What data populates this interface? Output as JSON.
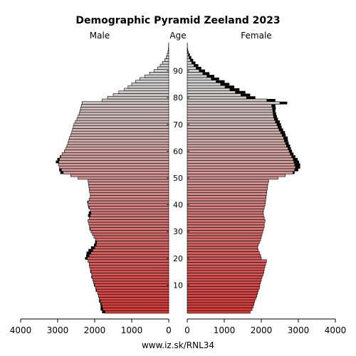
{
  "chart_data": {
    "type": "bar",
    "title": "Demographic Pyramid Zeeland 2023",
    "left_label": "Male",
    "center_label": "Age",
    "right_label": "Female",
    "source": "www.iz.sk/RNL34",
    "age_ticks": [
      10,
      20,
      30,
      40,
      50,
      60,
      70,
      80,
      90
    ],
    "x_ticks_left": [
      "4000",
      "3000",
      "2000",
      "1000",
      "0"
    ],
    "x_ticks_right": [
      "0",
      "1000",
      "2000",
      "3000",
      "4000"
    ],
    "xlim": [
      0,
      4000
    ],
    "age_range": [
      0,
      100
    ],
    "ages": [
      0,
      1,
      2,
      3,
      4,
      5,
      6,
      7,
      8,
      9,
      10,
      11,
      12,
      13,
      14,
      15,
      16,
      17,
      18,
      19,
      20,
      21,
      22,
      23,
      24,
      25,
      26,
      27,
      28,
      29,
      30,
      31,
      32,
      33,
      34,
      35,
      36,
      37,
      38,
      39,
      40,
      41,
      42,
      43,
      44,
      45,
      46,
      47,
      48,
      49,
      50,
      51,
      52,
      53,
      54,
      55,
      56,
      57,
      58,
      59,
      60,
      61,
      62,
      63,
      64,
      65,
      66,
      67,
      68,
      69,
      70,
      71,
      72,
      73,
      74,
      75,
      76,
      77,
      78,
      79,
      80,
      81,
      82,
      83,
      84,
      85,
      86,
      87,
      88,
      89,
      90,
      91,
      92,
      93,
      94,
      95,
      96,
      97,
      98,
      99,
      100
    ],
    "series": [
      {
        "name": "Male",
        "values": [
          1720,
          1780,
          1800,
          1820,
          1850,
          1880,
          1900,
          1920,
          1950,
          1980,
          2000,
          2030,
          2050,
          2070,
          2080,
          2100,
          2120,
          2140,
          2150,
          2180,
          2200,
          2150,
          2100,
          2050,
          2000,
          1960,
          1950,
          1980,
          2020,
          2060,
          2100,
          2120,
          2140,
          2160,
          2180,
          2150,
          2120,
          2100,
          2120,
          2150,
          2180,
          2180,
          2150,
          2120,
          2120,
          2140,
          2150,
          2160,
          2170,
          2180,
          2450,
          2650,
          2850,
          2900,
          2950,
          2980,
          2970,
          2950,
          2920,
          2880,
          2820,
          2780,
          2750,
          2720,
          2700,
          2680,
          2650,
          2620,
          2600,
          2580,
          2560,
          2520,
          2480,
          2450,
          2420,
          2400,
          2380,
          2360,
          2340,
          1800,
          1650,
          1500,
          1350,
          1200,
          1100,
          1000,
          900,
          780,
          650,
          520,
          400,
          300,
          230,
          170,
          110,
          70,
          40,
          20,
          10,
          5,
          2
        ],
        "excess": [
          80,
          60,
          40,
          30,
          30,
          0,
          0,
          0,
          20,
          0,
          20,
          0,
          0,
          20,
          0,
          20,
          0,
          0,
          0,
          0,
          60,
          80,
          120,
          120,
          100,
          60,
          40,
          0,
          0,
          0,
          0,
          20,
          0,
          0,
          0,
          0,
          60,
          60,
          0,
          20,
          0,
          20,
          0,
          0,
          0,
          0,
          0,
          0,
          0,
          0,
          0,
          0,
          80,
          60,
          0,
          0,
          80,
          60,
          20,
          0,
          0,
          0,
          0,
          0,
          0,
          0,
          0,
          0,
          0,
          0,
          0,
          0,
          0,
          0,
          0,
          0,
          0,
          0,
          0,
          0,
          0,
          0,
          0,
          0,
          0,
          0,
          0,
          0,
          0,
          0,
          0,
          0,
          0,
          0,
          0,
          0,
          0,
          0,
          0,
          0,
          0
        ]
      },
      {
        "name": "Female",
        "values": [
          1700,
          1750,
          1780,
          1800,
          1820,
          1850,
          1880,
          1900,
          1920,
          1950,
          1960,
          1980,
          2000,
          2020,
          2050,
          2070,
          2080,
          2100,
          2120,
          2140,
          2000,
          1980,
          1950,
          1920,
          1900,
          1920,
          1950,
          1980,
          2000,
          2020,
          2040,
          2060,
          2080,
          2080,
          2100,
          2080,
          2060,
          2050,
          2060,
          2080,
          2100,
          2110,
          2120,
          2130,
          2140,
          2150,
          2160,
          2170,
          2180,
          2200,
          2450,
          2650,
          2850,
          2900,
          2920,
          2900,
          2880,
          2860,
          2820,
          2780,
          2750,
          2720,
          2680,
          2650,
          2620,
          2600,
          2560,
          2520,
          2480,
          2450,
          2420,
          2380,
          2350,
          2330,
          2320,
          2310,
          2300,
          2280,
          2500,
          2150,
          1600,
          1450,
          1300,
          1150,
          1020,
          900,
          780,
          650,
          530,
          420,
          320,
          240,
          180,
          120,
          80,
          50,
          30,
          15,
          8,
          4,
          2
        ],
        "excess": [
          0,
          0,
          0,
          0,
          0,
          0,
          0,
          0,
          0,
          0,
          0,
          0,
          0,
          0,
          0,
          0,
          0,
          0,
          0,
          0,
          0,
          0,
          0,
          0,
          0,
          0,
          0,
          0,
          0,
          0,
          0,
          0,
          0,
          0,
          0,
          0,
          0,
          0,
          0,
          0,
          0,
          0,
          0,
          0,
          0,
          0,
          0,
          0,
          0,
          0,
          0,
          0,
          50,
          100,
          130,
          150,
          140,
          120,
          100,
          90,
          80,
          80,
          100,
          90,
          100,
          110,
          100,
          120,
          110,
          100,
          110,
          120,
          100,
          90,
          80,
          70,
          90,
          100,
          200,
          230,
          240,
          250,
          270,
          260,
          250,
          240,
          230,
          210,
          200,
          180,
          160,
          140,
          120,
          100,
          80,
          60,
          40,
          20,
          10,
          5,
          2
        ]
      }
    ]
  }
}
